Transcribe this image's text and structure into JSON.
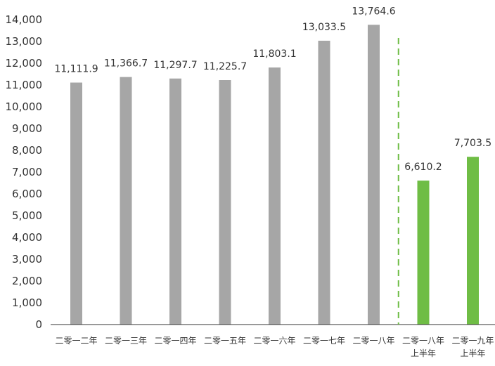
{
  "chart_data": {
    "type": "bar",
    "categories": [
      [
        "二零一二年"
      ],
      [
        "二零一三年"
      ],
      [
        "二零一四年"
      ],
      [
        "二零一五年"
      ],
      [
        "二零一六年"
      ],
      [
        "二零一七年"
      ],
      [
        "二零一八年"
      ],
      [
        "二零一八年",
        "上半年"
      ],
      [
        "二零一九年",
        "上半年"
      ]
    ],
    "values": [
      11111.9,
      11366.7,
      11297.7,
      11225.7,
      11803.1,
      13033.5,
      13764.6,
      6610.2,
      7703.5
    ],
    "value_labels": [
      "11,111.9",
      "11,366.7",
      "11,297.7",
      "11,225.7",
      "11,803.1",
      "13,033.5",
      "13,764.6",
      "6,610.2",
      "7,703.5"
    ],
    "bar_colors": [
      "#a6a6a6",
      "#a6a6a6",
      "#a6a6a6",
      "#a6a6a6",
      "#a6a6a6",
      "#a6a6a6",
      "#a6a6a6",
      "#6fbd45",
      "#6fbd45"
    ],
    "yticks": [
      0,
      1000,
      2000,
      3000,
      4000,
      5000,
      6000,
      7000,
      8000,
      9000,
      10000,
      11000,
      12000,
      13000,
      14000
    ],
    "ytick_labels": [
      "0",
      "1,000",
      "2,000",
      "3,000",
      "4,000",
      "5,000",
      "6,000",
      "7,000",
      "8,000",
      "9,000",
      "10,000",
      "11,000",
      "12,000",
      "13,000",
      "14,000"
    ],
    "ylim": [
      0,
      14000
    ],
    "grid": false,
    "separator": {
      "style": "dashed",
      "color": "#6fbd45",
      "after_category_index": 6
    },
    "title": "",
    "xlabel": "",
    "ylabel": ""
  }
}
